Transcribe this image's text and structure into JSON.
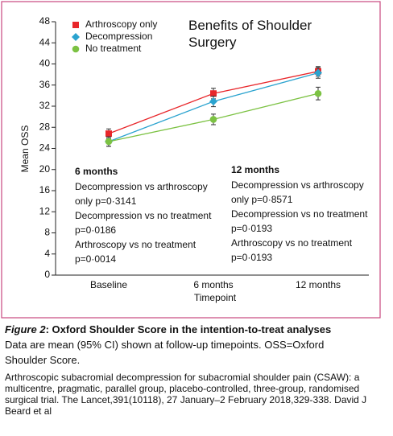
{
  "chart_data": {
    "type": "line",
    "title": "Benefits of Shoulder Surgery",
    "x_label": "Timepoint",
    "y_label": "Mean OSS",
    "categories": [
      "Baseline",
      "6 months",
      "12 months"
    ],
    "ylim": [
      0,
      48
    ],
    "yticks": [
      0,
      4,
      8,
      12,
      16,
      20,
      24,
      28,
      32,
      36,
      40,
      44,
      48
    ],
    "legend": "top-left",
    "series": [
      {
        "name": "Arthroscopy only",
        "color": "#e8262a",
        "marker": "square",
        "values": [
          26.8,
          34.4,
          38.6
        ],
        "errors": [
          0.9,
          1.0,
          0.9
        ]
      },
      {
        "name": "Decompression",
        "color": "#2aa3cf",
        "marker": "diamond",
        "values": [
          25.3,
          32.9,
          38.3
        ],
        "errors": [
          0.9,
          1.0,
          1.0
        ]
      },
      {
        "name": "No treatment",
        "color": "#7cc243",
        "marker": "circle",
        "values": [
          25.3,
          29.5,
          34.4
        ],
        "errors": [
          0.9,
          1.0,
          1.2
        ]
      }
    ],
    "annotations": [
      {
        "title": "6 months",
        "lines": [
          "Decompression vs arthroscopy",
          "only p=0·3141",
          "Decompression vs no treatment",
          "p=0·0186",
          "Arthroscopy vs no treatment",
          "p=0·0014"
        ]
      },
      {
        "title": "12 months",
        "lines": [
          "Decompression vs arthroscopy",
          "only p=0·8571",
          "Decompression vs no treatment",
          "p=0·0193",
          "Arthroscopy vs no treatment",
          "p=0·0193"
        ]
      }
    ]
  },
  "caption": {
    "label": "Figure 2",
    "title": ": Oxford Shoulder Score in the intention-to-treat analyses",
    "text": "Data are mean (95% CI) shown at follow-up timepoints. OSS=Oxford Shoulder Score."
  },
  "citation": "Arthroscopic subacromial decompression for subacromial shoulder pain (CSAW): a multicentre, pragmatic, parallel group, placebo-controlled, three-group, randomised surgical trial. The Lancet,391(10118), 27 January–2 February 2018,329-338. David J Beard et al"
}
